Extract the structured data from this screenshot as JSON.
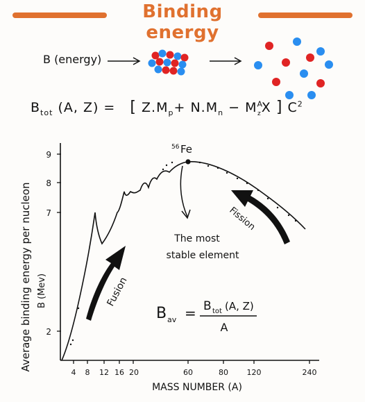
{
  "header": {
    "title": "Binding energy",
    "accent_color": "#e0712f"
  },
  "process": {
    "label": "B (energy)",
    "proton_color": "#e02424",
    "neutron_color": "#2a8ef0"
  },
  "equation": {
    "lhs_symbol": "B",
    "lhs_sub": "tot",
    "lhs_args": "(A, Z) =",
    "open": "[",
    "z_term": "Z.M",
    "z_sub": "p",
    "plus": "+",
    "n_term": "N.M",
    "n_sub": "n",
    "minus": "−",
    "m_symbol": "M",
    "m_sup": "A",
    "m_sub": "z",
    "x_symbol": "X",
    "close": "]",
    "c_symbol": "C",
    "c_sup": "2"
  },
  "chart_data": {
    "type": "line",
    "title": "",
    "xlabel": "MASS NUMBER (A)",
    "ylabel_line1": "Average binding energy per nucleon",
    "ylabel_line2": "B (Mev)",
    "x_ticks": [
      "4",
      "8",
      "12",
      "16",
      "20",
      "60",
      "80",
      "120",
      "240"
    ],
    "y_ticks": [
      "2",
      "7",
      "8",
      "9"
    ],
    "peak_label": "Fe",
    "peak_mass": "56",
    "peak_note_line1": "The most",
    "peak_note_line2": "stable element",
    "fusion_label": "Fusion",
    "fission_label": "Fission",
    "average_formula": {
      "lhs": "B",
      "lhs_sub": "av",
      "equals": "=",
      "numerator_symbol": "B",
      "numerator_sub": "tot",
      "numerator_args": "(A, Z)",
      "denominator": "A"
    }
  }
}
